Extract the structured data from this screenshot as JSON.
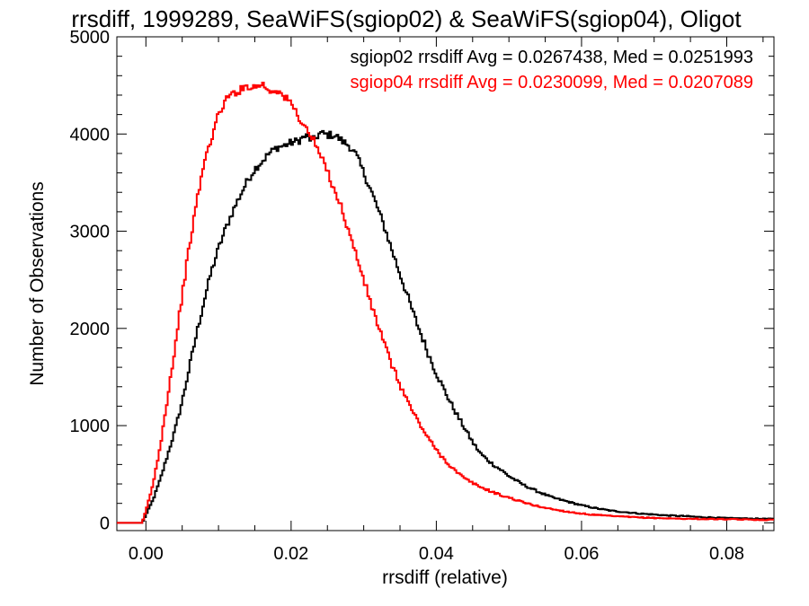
{
  "chart_data": {
    "type": "line",
    "title": "rrsdiff, 1999289, SeaWiFS(sgiop02) & SeaWiFS(sgiop04), Oligot",
    "xlabel": "rrsdiff (relative)",
    "ylabel": "Number of Observations",
    "xlim": [
      -0.004,
      0.0865
    ],
    "ylim": [
      -80,
      5000
    ],
    "xticks": [
      0.0,
      0.02,
      0.04,
      0.06,
      0.08
    ],
    "xtick_labels": [
      "0.00",
      "0.02",
      "0.04",
      "0.06",
      "0.08"
    ],
    "yticks": [
      0,
      1000,
      2000,
      3000,
      4000,
      5000
    ],
    "ytick_labels": [
      "0",
      "1000",
      "2000",
      "3000",
      "4000",
      "5000"
    ],
    "step": true,
    "grid": false,
    "annotations": [
      {
        "text": "sgiop02 rrsdiff Avg = 0.0267438, Med = 0.0251993",
        "color": "#000000"
      },
      {
        "text": "sgiop04 rrsdiff Avg = 0.0230099, Med = 0.0207089",
        "color": "#ff0000"
      }
    ],
    "series": [
      {
        "color": "#000000",
        "x": [
          -0.004,
          -0.0005,
          0.0,
          0.001,
          0.002,
          0.003,
          0.004,
          0.005,
          0.006,
          0.007,
          0.008,
          0.009,
          0.01,
          0.011,
          0.012,
          0.013,
          0.014,
          0.015,
          0.016,
          0.017,
          0.018,
          0.019,
          0.02,
          0.021,
          0.022,
          0.023,
          0.024,
          0.025,
          0.026,
          0.027,
          0.028,
          0.029,
          0.03,
          0.031,
          0.032,
          0.033,
          0.034,
          0.035,
          0.036,
          0.037,
          0.038,
          0.039,
          0.04,
          0.041,
          0.042,
          0.043,
          0.044,
          0.045,
          0.046,
          0.047,
          0.048,
          0.049,
          0.05,
          0.052,
          0.054,
          0.056,
          0.058,
          0.06,
          0.062,
          0.064,
          0.066,
          0.068,
          0.07,
          0.072,
          0.074,
          0.076,
          0.078,
          0.08,
          0.082,
          0.084,
          0.0865
        ],
        "y": [
          0,
          0,
          80,
          240,
          450,
          700,
          950,
          1250,
          1600,
          1950,
          2280,
          2580,
          2820,
          3030,
          3210,
          3370,
          3520,
          3640,
          3720,
          3800,
          3860,
          3880,
          3910,
          3930,
          3980,
          3930,
          4010,
          3990,
          3990,
          3930,
          3880,
          3780,
          3600,
          3420,
          3220,
          3010,
          2780,
          2560,
          2340,
          2120,
          1920,
          1720,
          1540,
          1380,
          1230,
          1090,
          960,
          830,
          720,
          650,
          590,
          540,
          480,
          390,
          320,
          260,
          220,
          180,
          150,
          125,
          110,
          95,
          85,
          75,
          70,
          60,
          55,
          48,
          45,
          42,
          40
        ]
      },
      {
        "color": "#ff0000",
        "x": [
          -0.004,
          -0.0005,
          0.0,
          0.001,
          0.002,
          0.003,
          0.004,
          0.005,
          0.006,
          0.007,
          0.008,
          0.009,
          0.01,
          0.011,
          0.012,
          0.013,
          0.014,
          0.015,
          0.016,
          0.017,
          0.018,
          0.019,
          0.02,
          0.021,
          0.022,
          0.023,
          0.024,
          0.025,
          0.026,
          0.027,
          0.028,
          0.029,
          0.03,
          0.031,
          0.032,
          0.033,
          0.034,
          0.035,
          0.036,
          0.037,
          0.038,
          0.039,
          0.04,
          0.041,
          0.042,
          0.043,
          0.044,
          0.045,
          0.046,
          0.047,
          0.048,
          0.049,
          0.05,
          0.052,
          0.054,
          0.056,
          0.058,
          0.06,
          0.062,
          0.064,
          0.066,
          0.068,
          0.07,
          0.072,
          0.074,
          0.076,
          0.078,
          0.08,
          0.082,
          0.084,
          0.0865
        ],
        "y": [
          0,
          0,
          120,
          400,
          800,
          1300,
          1800,
          2350,
          2850,
          3300,
          3700,
          3950,
          4200,
          4350,
          4420,
          4450,
          4500,
          4480,
          4520,
          4440,
          4460,
          4380,
          4320,
          4180,
          4060,
          3950,
          3780,
          3620,
          3420,
          3230,
          2980,
          2750,
          2500,
          2250,
          2030,
          1800,
          1600,
          1420,
          1260,
          1110,
          980,
          860,
          750,
          660,
          580,
          510,
          450,
          410,
          370,
          340,
          310,
          280,
          260,
          210,
          170,
          140,
          115,
          95,
          80,
          70,
          62,
          55,
          50,
          45,
          42,
          40,
          38,
          36,
          34,
          32,
          30
        ]
      }
    ]
  }
}
